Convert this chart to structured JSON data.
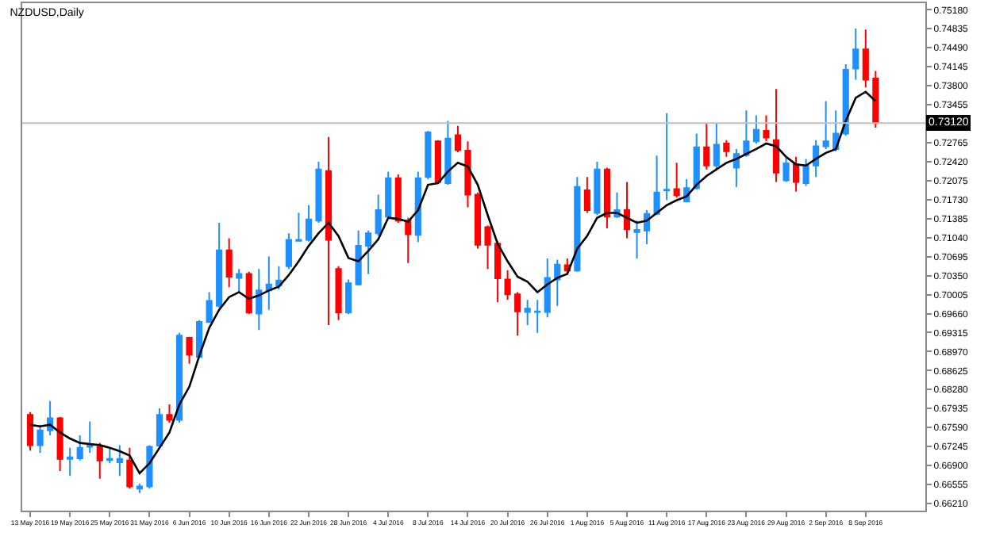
{
  "chart_data": {
    "type": "candlestick",
    "title": "NZDUSD,Daily",
    "categories": [
      "13 May 2016",
      null,
      null,
      null,
      "19 May 2016",
      null,
      null,
      null,
      "25 May 2016",
      null,
      null,
      null,
      "31 May 2016",
      null,
      null,
      null,
      "6 Jun 2016",
      null,
      null,
      null,
      "10 Jun 2016",
      null,
      null,
      null,
      "16 Jun 2016",
      null,
      null,
      null,
      "22 Jun 2016",
      null,
      null,
      null,
      "28 Jun 2016",
      null,
      null,
      null,
      "4 Jul 2016",
      null,
      null,
      null,
      "8 Jul 2016",
      null,
      null,
      null,
      "14 Jul 2016",
      null,
      null,
      null,
      "20 Jul 2016",
      null,
      null,
      null,
      "26 Jul 2016",
      null,
      null,
      null,
      "1 Aug 2016",
      null,
      null,
      null,
      "5 Aug 2016",
      null,
      null,
      null,
      "11 Aug 2016",
      null,
      null,
      null,
      "17 Aug 2016",
      null,
      null,
      null,
      "23 Aug 2016",
      null,
      null,
      null,
      "29 Aug 2016",
      null,
      null,
      null,
      "2 Sep 2016",
      null,
      null,
      null,
      "8 Sep 2016",
      null
    ],
    "ohlc": [
      [
        0.6782,
        0.6787,
        0.6717,
        0.6727
      ],
      [
        0.6727,
        0.6764,
        0.6713,
        0.6754
      ],
      [
        0.6754,
        0.6807,
        0.6745,
        0.6776
      ],
      [
        0.6776,
        0.6778,
        0.668,
        0.6702
      ],
      [
        0.6702,
        0.6722,
        0.6671,
        0.6705
      ],
      [
        0.6703,
        0.6745,
        0.6699,
        0.6722
      ],
      [
        0.6724,
        0.677,
        0.6713,
        0.6726
      ],
      [
        0.6724,
        0.6731,
        0.6666,
        0.6699
      ],
      [
        0.67,
        0.6722,
        0.6694,
        0.6702
      ],
      [
        0.6696,
        0.6727,
        0.6671,
        0.6702
      ],
      [
        0.6699,
        0.6722,
        0.6648,
        0.6652
      ],
      [
        0.6648,
        0.6657,
        0.664,
        0.6652
      ],
      [
        0.6652,
        0.6727,
        0.6648,
        0.6724
      ],
      [
        0.6726,
        0.6794,
        0.6722,
        0.6782
      ],
      [
        0.6782,
        0.6801,
        0.6768,
        0.6773
      ],
      [
        0.6773,
        0.6931,
        0.6768,
        0.6926
      ],
      [
        0.6922,
        0.6924,
        0.6875,
        0.6891
      ],
      [
        0.6887,
        0.6954,
        0.6885,
        0.6951
      ],
      [
        0.6951,
        0.7005,
        0.695,
        0.6989
      ],
      [
        0.698,
        0.7131,
        0.6977,
        0.7081
      ],
      [
        0.7081,
        0.7103,
        0.7014,
        0.7033
      ],
      [
        0.7031,
        0.7047,
        0.7005,
        0.7038
      ],
      [
        0.7038,
        0.7042,
        0.6965,
        0.6968
      ],
      [
        0.6966,
        0.7047,
        0.6936,
        0.7008
      ],
      [
        0.7008,
        0.707,
        0.6973,
        0.7019
      ],
      [
        0.7017,
        0.7052,
        0.701,
        0.7026
      ],
      [
        0.7052,
        0.7112,
        0.7047,
        0.71
      ],
      [
        0.7098,
        0.7149,
        0.7097,
        0.71
      ],
      [
        0.71,
        0.7163,
        0.7097,
        0.7137
      ],
      [
        0.7135,
        0.7242,
        0.7131,
        0.7228
      ],
      [
        0.7225,
        0.7287,
        0.6945,
        0.71
      ],
      [
        0.7047,
        0.7052,
        0.6954,
        0.6968
      ],
      [
        0.6968,
        0.7028,
        0.6965,
        0.7021
      ],
      [
        0.7019,
        0.7117,
        0.7017,
        0.7089
      ],
      [
        0.7089,
        0.7117,
        0.7038,
        0.7112
      ],
      [
        0.7112,
        0.7182,
        0.7107,
        0.7154
      ],
      [
        0.7142,
        0.7224,
        0.714,
        0.7212
      ],
      [
        0.7212,
        0.7219,
        0.7131,
        0.7135
      ],
      [
        0.7135,
        0.714,
        0.7058,
        0.711
      ],
      [
        0.7109,
        0.7224,
        0.7096,
        0.7212
      ],
      [
        0.7214,
        0.7298,
        0.721,
        0.7295
      ],
      [
        0.7279,
        0.7281,
        0.7203,
        0.7205
      ],
      [
        0.7203,
        0.7316,
        0.72,
        0.7284
      ],
      [
        0.729,
        0.7307,
        0.7259,
        0.7263
      ],
      [
        0.7262,
        0.7279,
        0.7159,
        0.7182
      ],
      [
        0.7182,
        0.7186,
        0.7084,
        0.7091
      ],
      [
        0.7123,
        0.7126,
        0.7047,
        0.7091
      ],
      [
        0.7093,
        0.7098,
        0.6987,
        0.703
      ],
      [
        0.7028,
        0.7045,
        0.6991,
        0.7001
      ],
      [
        0.7001,
        0.7005,
        0.6926,
        0.697
      ],
      [
        0.6969,
        0.6991,
        0.6945,
        0.6975
      ],
      [
        0.6969,
        0.6991,
        0.6931,
        0.697
      ],
      [
        0.6969,
        0.7066,
        0.6959,
        0.7031
      ],
      [
        0.7028,
        0.7064,
        0.698,
        0.7055
      ],
      [
        0.7054,
        0.7066,
        0.7038,
        0.7044
      ],
      [
        0.7044,
        0.7214,
        0.7042,
        0.7196
      ],
      [
        0.719,
        0.7214,
        0.7149,
        0.7154
      ],
      [
        0.7149,
        0.7242,
        0.7145,
        0.7228
      ],
      [
        0.7228,
        0.7231,
        0.7121,
        0.7142
      ],
      [
        0.7142,
        0.7186,
        0.714,
        0.7154
      ],
      [
        0.7154,
        0.7205,
        0.7103,
        0.7119
      ],
      [
        0.7114,
        0.7135,
        0.7066,
        0.7118
      ],
      [
        0.7117,
        0.7154,
        0.7092,
        0.7147
      ],
      [
        0.7147,
        0.7253,
        0.7145,
        0.7186
      ],
      [
        0.719,
        0.733,
        0.7172,
        0.7191
      ],
      [
        0.7192,
        0.724,
        0.7177,
        0.7181
      ],
      [
        0.717,
        0.721,
        0.7168,
        0.7194
      ],
      [
        0.7194,
        0.7293,
        0.7191,
        0.7268
      ],
      [
        0.7268,
        0.7312,
        0.7228,
        0.7235
      ],
      [
        0.7235,
        0.7312,
        0.7228,
        0.7273
      ],
      [
        0.7275,
        0.7281,
        0.7251,
        0.7261
      ],
      [
        0.7231,
        0.7265,
        0.7196,
        0.7256
      ],
      [
        0.7254,
        0.7335,
        0.7251,
        0.7279
      ],
      [
        0.7279,
        0.7326,
        0.7275,
        0.73
      ],
      [
        0.7298,
        0.7326,
        0.7279,
        0.7286
      ],
      [
        0.7281,
        0.7374,
        0.7205,
        0.7222
      ],
      [
        0.7208,
        0.7251,
        0.7205,
        0.7239
      ],
      [
        0.7237,
        0.7251,
        0.7188,
        0.7205
      ],
      [
        0.7203,
        0.7247,
        0.7198,
        0.7235
      ],
      [
        0.7235,
        0.7281,
        0.7214,
        0.727
      ],
      [
        0.727,
        0.7352,
        0.7265,
        0.7279
      ],
      [
        0.7265,
        0.7335,
        0.7261,
        0.7293
      ],
      [
        0.7293,
        0.7419,
        0.7289,
        0.7409
      ],
      [
        0.7411,
        0.7484,
        0.7391,
        0.7446
      ],
      [
        0.7446,
        0.7482,
        0.7377,
        0.7391
      ],
      [
        0.7393,
        0.7407,
        0.7304,
        0.7312
      ]
    ],
    "colors": [
      "#ff0000",
      "#1e90ff",
      "#1e90ff",
      "#ff0000",
      "#1e90ff",
      "#1e90ff",
      "#1e90ff",
      "#ff0000",
      "#1e90ff",
      "#1e90ff",
      "#ff0000",
      "#1e90ff",
      "#1e90ff",
      "#1e90ff",
      "#ff0000",
      "#1e90ff",
      "#ff0000",
      "#1e90ff",
      "#1e90ff",
      "#1e90ff",
      "#ff0000",
      "#1e90ff",
      "#ff0000",
      "#1e90ff",
      "#1e90ff",
      "#1e90ff",
      "#1e90ff",
      "#1e90ff",
      "#1e90ff",
      "#1e90ff",
      "#ff0000",
      "#ff0000",
      "#1e90ff",
      "#1e90ff",
      "#1e90ff",
      "#1e90ff",
      "#1e90ff",
      "#ff0000",
      "#ff0000",
      "#1e90ff",
      "#1e90ff",
      "#ff0000",
      "#1e90ff",
      "#ff0000",
      "#ff0000",
      "#ff0000",
      "#ff0000",
      "#ff0000",
      "#ff0000",
      "#ff0000",
      "#1e90ff",
      "#1e90ff",
      "#1e90ff",
      "#1e90ff",
      "#ff0000",
      "#1e90ff",
      "#ff0000",
      "#1e90ff",
      "#ff0000",
      "#1e90ff",
      "#ff0000",
      "#1e90ff",
      "#1e90ff",
      "#1e90ff",
      "#1e90ff",
      "#ff0000",
      "#1e90ff",
      "#1e90ff",
      "#ff0000",
      "#1e90ff",
      "#ff0000",
      "#1e90ff",
      "#1e90ff",
      "#1e90ff",
      "#ff0000",
      "#ff0000",
      "#1e90ff",
      "#ff0000",
      "#1e90ff",
      "#1e90ff",
      "#1e90ff",
      "#1e90ff",
      "#1e90ff",
      "#1e90ff",
      "#ff0000",
      "#ff0000"
    ],
    "series": [
      {
        "type": "line",
        "color": "#000000",
        "values": [
          0.6764,
          0.6761,
          0.6764,
          0.675,
          0.6739,
          0.6731,
          0.6729,
          0.6727,
          0.6722,
          0.6716,
          0.6708,
          0.6676,
          0.6694,
          0.6722,
          0.675,
          0.6801,
          0.6833,
          0.6889,
          0.694,
          0.6973,
          0.6996,
          0.7005,
          0.6993,
          0.6999,
          0.7008,
          0.7015,
          0.7036,
          0.7061,
          0.7089,
          0.7112,
          0.7131,
          0.7107,
          0.7067,
          0.7061,
          0.708,
          0.7101,
          0.714,
          0.7138,
          0.7133,
          0.7154,
          0.72,
          0.7203,
          0.7224,
          0.724,
          0.7233,
          0.72,
          0.7145,
          0.7093,
          0.7061,
          0.7033,
          0.7024,
          0.7005,
          0.7019,
          0.7031,
          0.7038,
          0.7084,
          0.7107,
          0.714,
          0.7149,
          0.7149,
          0.714,
          0.7131,
          0.7135,
          0.7149,
          0.7163,
          0.7172,
          0.7179,
          0.72,
          0.7216,
          0.7228,
          0.724,
          0.7247,
          0.7256,
          0.7265,
          0.7275,
          0.727,
          0.7251,
          0.7237,
          0.7235,
          0.7247,
          0.7258,
          0.7265,
          0.7316,
          0.7358,
          0.7369,
          0.7352
        ]
      }
    ],
    "ylim": [
      0.6608,
      0.753
    ],
    "yticks": [
      {
        "value": 0.7518,
        "label": "0.75180"
      },
      {
        "value": 0.74835,
        "label": "0.74835"
      },
      {
        "value": 0.7449,
        "label": "0.74490"
      },
      {
        "value": 0.74145,
        "label": "0.74145"
      },
      {
        "value": 0.738,
        "label": "0.73800"
      },
      {
        "value": 0.73455,
        "label": "0.73455"
      },
      {
        "value": 0.72765,
        "label": "0.72765"
      },
      {
        "value": 0.7242,
        "label": "0.72420"
      },
      {
        "value": 0.72075,
        "label": "0.72075"
      },
      {
        "value": 0.7173,
        "label": "0.71730"
      },
      {
        "value": 0.71385,
        "label": "0.71385"
      },
      {
        "value": 0.7104,
        "label": "0.71040"
      },
      {
        "value": 0.70695,
        "label": "0.70695"
      },
      {
        "value": 0.7035,
        "label": "0.70350"
      },
      {
        "value": 0.70005,
        "label": "0.70005"
      },
      {
        "value": 0.6966,
        "label": "0.69660"
      },
      {
        "value": 0.69315,
        "label": "0.69315"
      },
      {
        "value": 0.6897,
        "label": "0.68970"
      },
      {
        "value": 0.68625,
        "label": "0.68625"
      },
      {
        "value": 0.6828,
        "label": "0.68280"
      },
      {
        "value": 0.67935,
        "label": "0.67935"
      },
      {
        "value": 0.6759,
        "label": "0.67590"
      },
      {
        "value": 0.67245,
        "label": "0.67245"
      },
      {
        "value": 0.669,
        "label": "0.66900"
      },
      {
        "value": 0.66555,
        "label": "0.66555"
      },
      {
        "value": 0.6621,
        "label": "0.66210"
      }
    ],
    "ref_lines": [
      {
        "axis": "y",
        "value": 0.7312,
        "label": "0.73120",
        "color": "#c0c0c0"
      }
    ]
  }
}
